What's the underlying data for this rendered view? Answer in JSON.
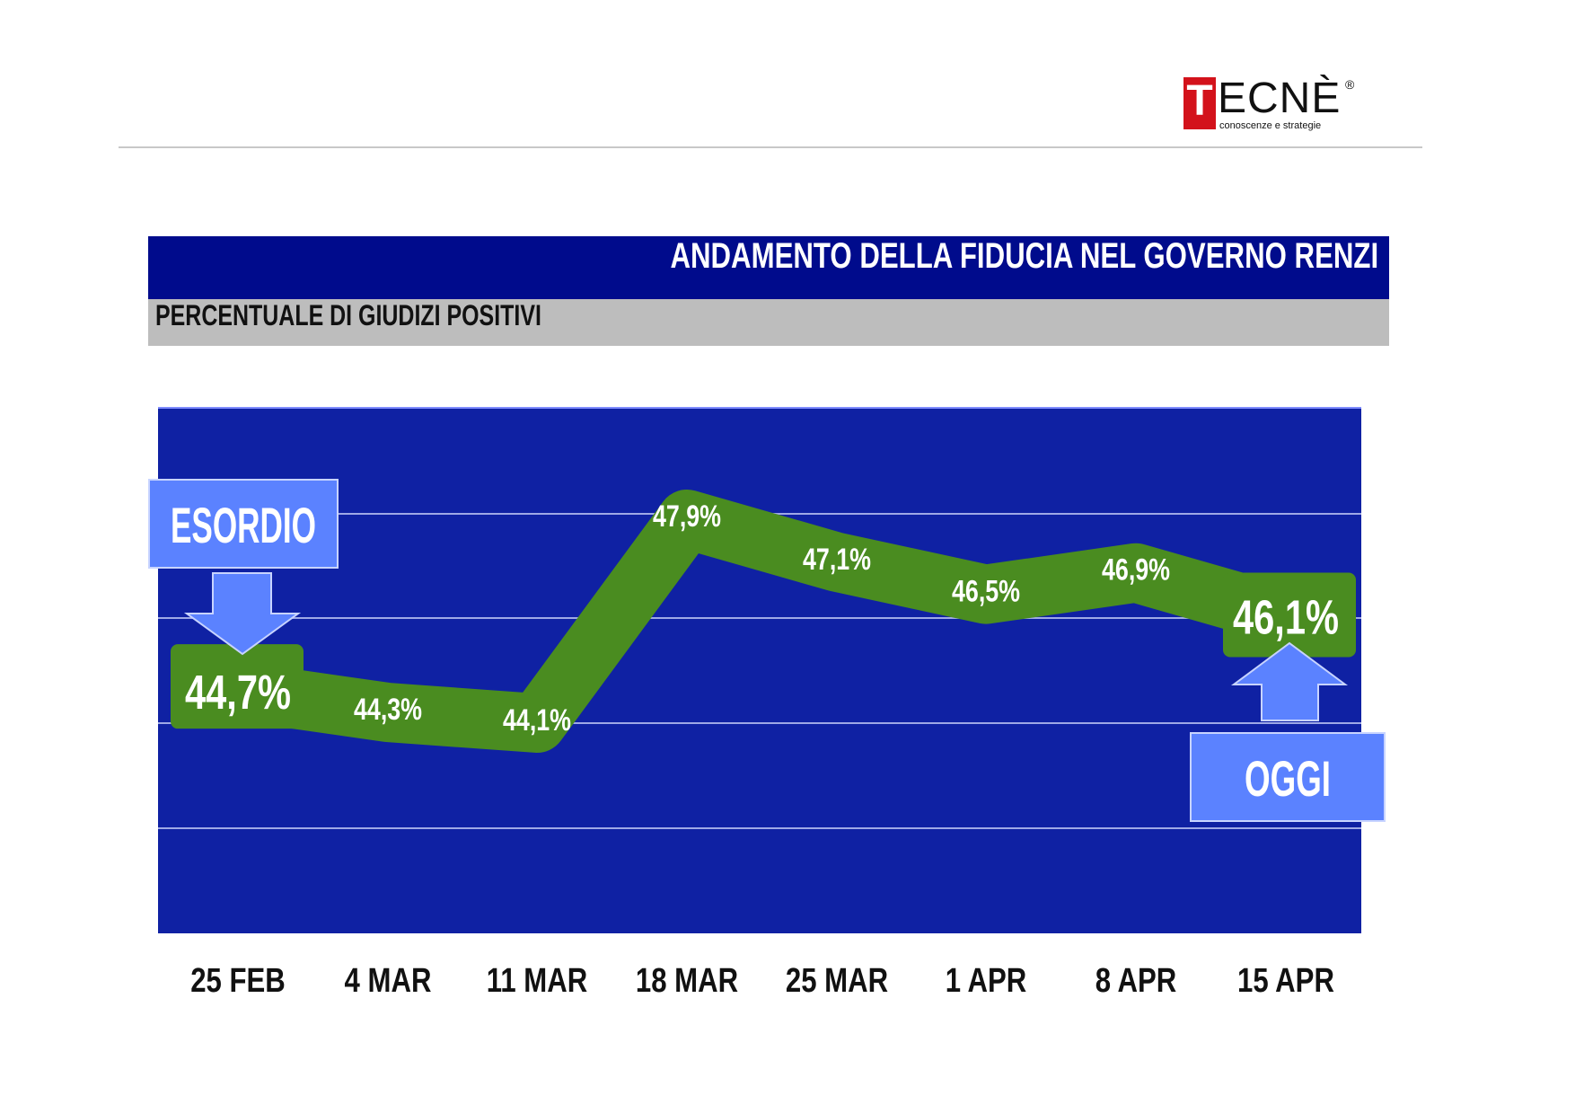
{
  "logo": {
    "letter": "T",
    "rest": "ECNÈ",
    "reg": "®",
    "tagline": "conoscenze e strategie",
    "color": "#d3121b"
  },
  "header": {
    "title": "ANDAMENTO DELLA FIDUCIA NEL GOVERNO RENZI",
    "subtitle": "PERCENTUALE DI GIUDIZI POSITIVI"
  },
  "colors": {
    "title_bg": "#000b8c",
    "plot_bg": "#0f21a3",
    "line": "#4a8c20",
    "callout": "#5b82ff"
  },
  "chart_data": {
    "type": "line",
    "categories": [
      "25 FEB",
      "4 MAR",
      "11 MAR",
      "18 MAR",
      "25 MAR",
      "1 APR",
      "8 APR",
      "15 APR"
    ],
    "values": [
      44.7,
      44.3,
      44.1,
      47.9,
      47.1,
      46.5,
      46.9,
      46.1
    ],
    "labels": [
      "44,7%",
      "44,3%",
      "44,1%",
      "47,9%",
      "47,1%",
      "46,5%",
      "46,9%",
      "46,1%"
    ],
    "grid": true,
    "annotations": [
      {
        "text": "ESORDIO",
        "category": "25 FEB"
      },
      {
        "text": "OGGI",
        "category": "15 APR"
      }
    ]
  }
}
